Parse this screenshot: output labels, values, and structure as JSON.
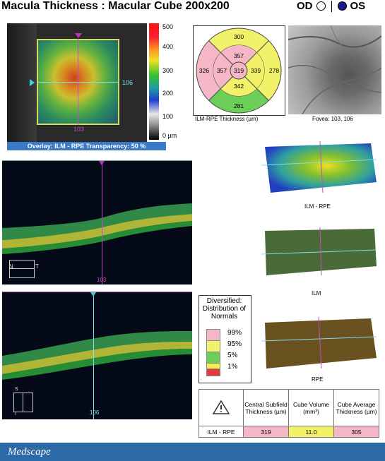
{
  "header": {
    "title": "Macula Thickness : Macular Cube 200x200",
    "od_label": "OD",
    "os_label": "OS"
  },
  "thickness_map": {
    "overlay_caption": "Overlay: ILM - RPE  Transparency: 50 %",
    "h_scan_index": "106",
    "v_scan_index": "103",
    "colorbar_labels": [
      "500",
      "400",
      "300",
      "200",
      "100",
      "0 µm"
    ]
  },
  "etdrs": {
    "caption": "ILM-RPE Thickness (µm)",
    "center": "319",
    "inner_superior": "357",
    "inner_nasal": "339",
    "inner_inferior": "342",
    "inner_temporal": "357",
    "outer_superior": "300",
    "outer_nasal": "278",
    "outer_inferior": "281",
    "outer_temporal": "326"
  },
  "fundus": {
    "caption": "Fovea: 103, 106"
  },
  "bscans": {
    "horizontal_index": "103",
    "vertical_index": "106",
    "orientation_n": "N",
    "orientation_t": "T",
    "orientation_s": "S",
    "orientation_i": "I"
  },
  "surfaces": [
    {
      "label": "ILM - RPE"
    },
    {
      "label": "ILM"
    },
    {
      "label": "RPE"
    }
  ],
  "legend": {
    "title": "Diversified: Distribution of Normals",
    "rows": [
      {
        "label": "99%",
        "color": "#f5b6c6"
      },
      {
        "label": "95%",
        "color": "#f2f26a"
      },
      {
        "label": "5%",
        "color": "#6ccf5a"
      },
      {
        "label": "1%",
        "color": "#f4ee52"
      },
      {
        "label": "",
        "color": "#e33a3a"
      }
    ]
  },
  "table": {
    "headers": [
      "Central Subfield Thickness (µm)",
      "Cube Volume (mm³)",
      "Cube Average Thickness (µm)"
    ],
    "row_label": "ILM - RPE",
    "values": [
      "319",
      "11.0",
      "305"
    ]
  },
  "footer": {
    "brand": "Medscape"
  }
}
